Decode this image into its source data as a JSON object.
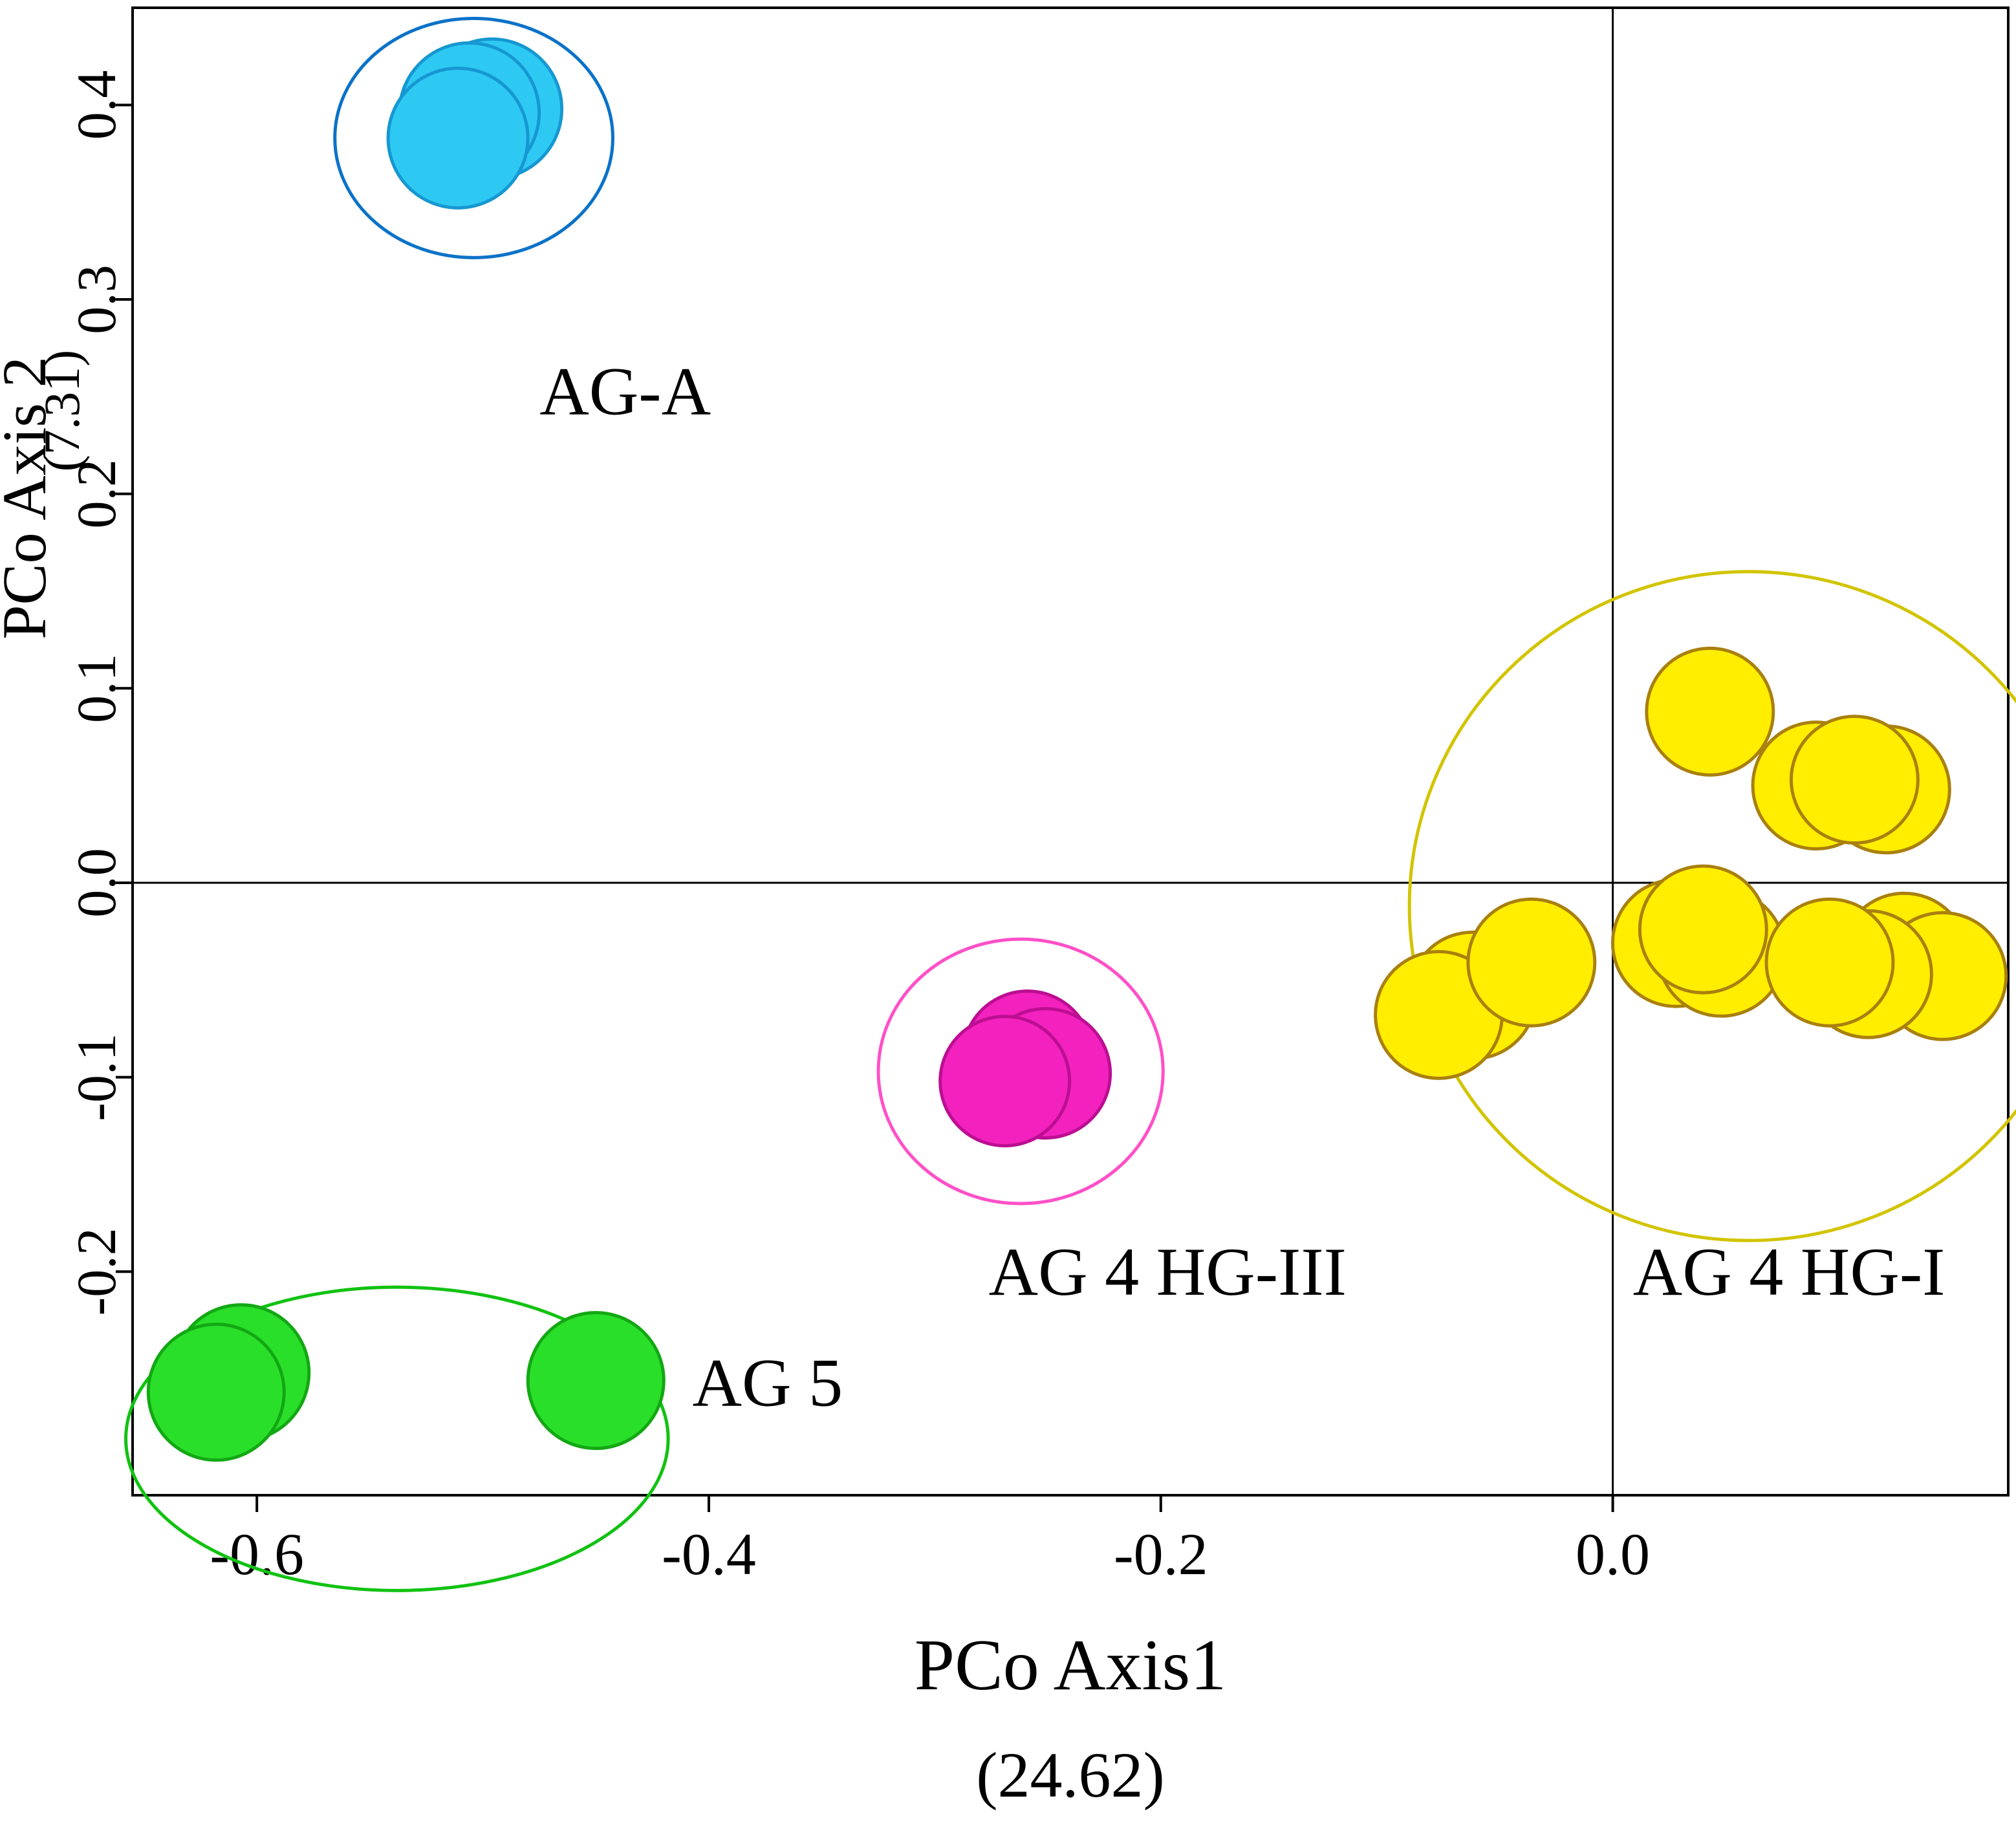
{
  "chart_data": {
    "type": "scatter",
    "title": "",
    "xlabel": "PCo Axis1",
    "xlabel_variance": "(24.62)",
    "ylabel": "PCo Axis 2",
    "ylabel_variance": "(7.31)",
    "xlim": [
      -0.655,
      0.175
    ],
    "ylim": [
      -0.315,
      0.45
    ],
    "x_ticks": [
      {
        "value": -0.6,
        "label": "-0.6"
      },
      {
        "value": -0.4,
        "label": "-0.4"
      },
      {
        "value": -0.2,
        "label": "-0.2"
      },
      {
        "value": 0.0,
        "label": "0.0"
      }
    ],
    "y_ticks": [
      {
        "value": 0.4,
        "label": "0.4"
      },
      {
        "value": 0.3,
        "label": "0.3"
      },
      {
        "value": 0.2,
        "label": "0.2"
      },
      {
        "value": 0.1,
        "label": "0.1"
      },
      {
        "value": 0.0,
        "label": "0.0"
      },
      {
        "value": -0.1,
        "label": "-0.1"
      },
      {
        "value": -0.2,
        "label": "-0.2"
      }
    ],
    "grid": false,
    "zero_lines": true,
    "legend": "none",
    "axis_color": "#000000",
    "background": "#ffffff",
    "clusters": [
      {
        "name": "AG-A",
        "label": {
          "text": "AG-A",
          "x": -0.437,
          "y": 0.253
        },
        "marker": {
          "fill": "#2EC9F2",
          "stroke": "#1697D2",
          "radius_px": 108
        },
        "ellipse": {
          "stroke": "#0A72C8",
          "cx": -0.504,
          "cy": 0.383,
          "rx": 0.0615,
          "ry": 0.0615
        },
        "points": [
          [
            -0.496,
            0.398
          ],
          [
            -0.506,
            0.396
          ],
          [
            -0.511,
            0.383
          ]
        ]
      },
      {
        "name": "AG 4 HG-III",
        "label": {
          "text": "AG 4 HG-III",
          "x": -0.197,
          "y": -0.2
        },
        "marker": {
          "fill": "#F322BE",
          "stroke": "#BC0E92",
          "radius_px": 100
        },
        "ellipse": {
          "stroke": "#FF4FC8",
          "cx": -0.262,
          "cy": -0.097,
          "rx": 0.063,
          "ry": 0.068
        },
        "points": [
          [
            -0.259,
            -0.089
          ],
          [
            -0.251,
            -0.098
          ],
          [
            -0.269,
            -0.102
          ]
        ]
      },
      {
        "name": "AG 5",
        "label": {
          "text": "AG 5",
          "x": -0.374,
          "y": -0.257
        },
        "marker": {
          "fill": "#2ADF2A",
          "stroke": "#13A813",
          "radius_px": 105
        },
        "ellipse": {
          "stroke": "#11C211",
          "cx": -0.538,
          "cy": -0.286,
          "rx": 0.12,
          "ry": 0.078
        },
        "points": [
          [
            -0.607,
            -0.252
          ],
          [
            -0.618,
            -0.262
          ],
          [
            -0.45,
            -0.256
          ]
        ]
      },
      {
        "name": "AG 4 HG-I",
        "label": {
          "text": "AG 4 HG-I",
          "x": 0.078,
          "y": -0.2
        },
        "marker": {
          "fill": "#FFEE00",
          "stroke": "#A9800E",
          "radius_px": 98
        },
        "ellipse": {
          "stroke": "#D2C400",
          "cx": 0.06,
          "cy": -0.012,
          "rx": 0.15,
          "ry": 0.172
        },
        "points": [
          [
            0.043,
            0.088
          ],
          [
            0.09,
            0.05
          ],
          [
            0.121,
            0.048
          ],
          [
            0.107,
            0.053
          ],
          [
            -0.062,
            -0.058
          ],
          [
            -0.077,
            -0.068
          ],
          [
            -0.036,
            -0.041
          ],
          [
            0.028,
            -0.031
          ],
          [
            0.048,
            -0.036
          ],
          [
            0.04,
            -0.024
          ],
          [
            0.129,
            -0.038
          ],
          [
            0.146,
            -0.048
          ],
          [
            0.113,
            -0.047
          ],
          [
            0.096,
            -0.041
          ]
        ]
      }
    ]
  }
}
